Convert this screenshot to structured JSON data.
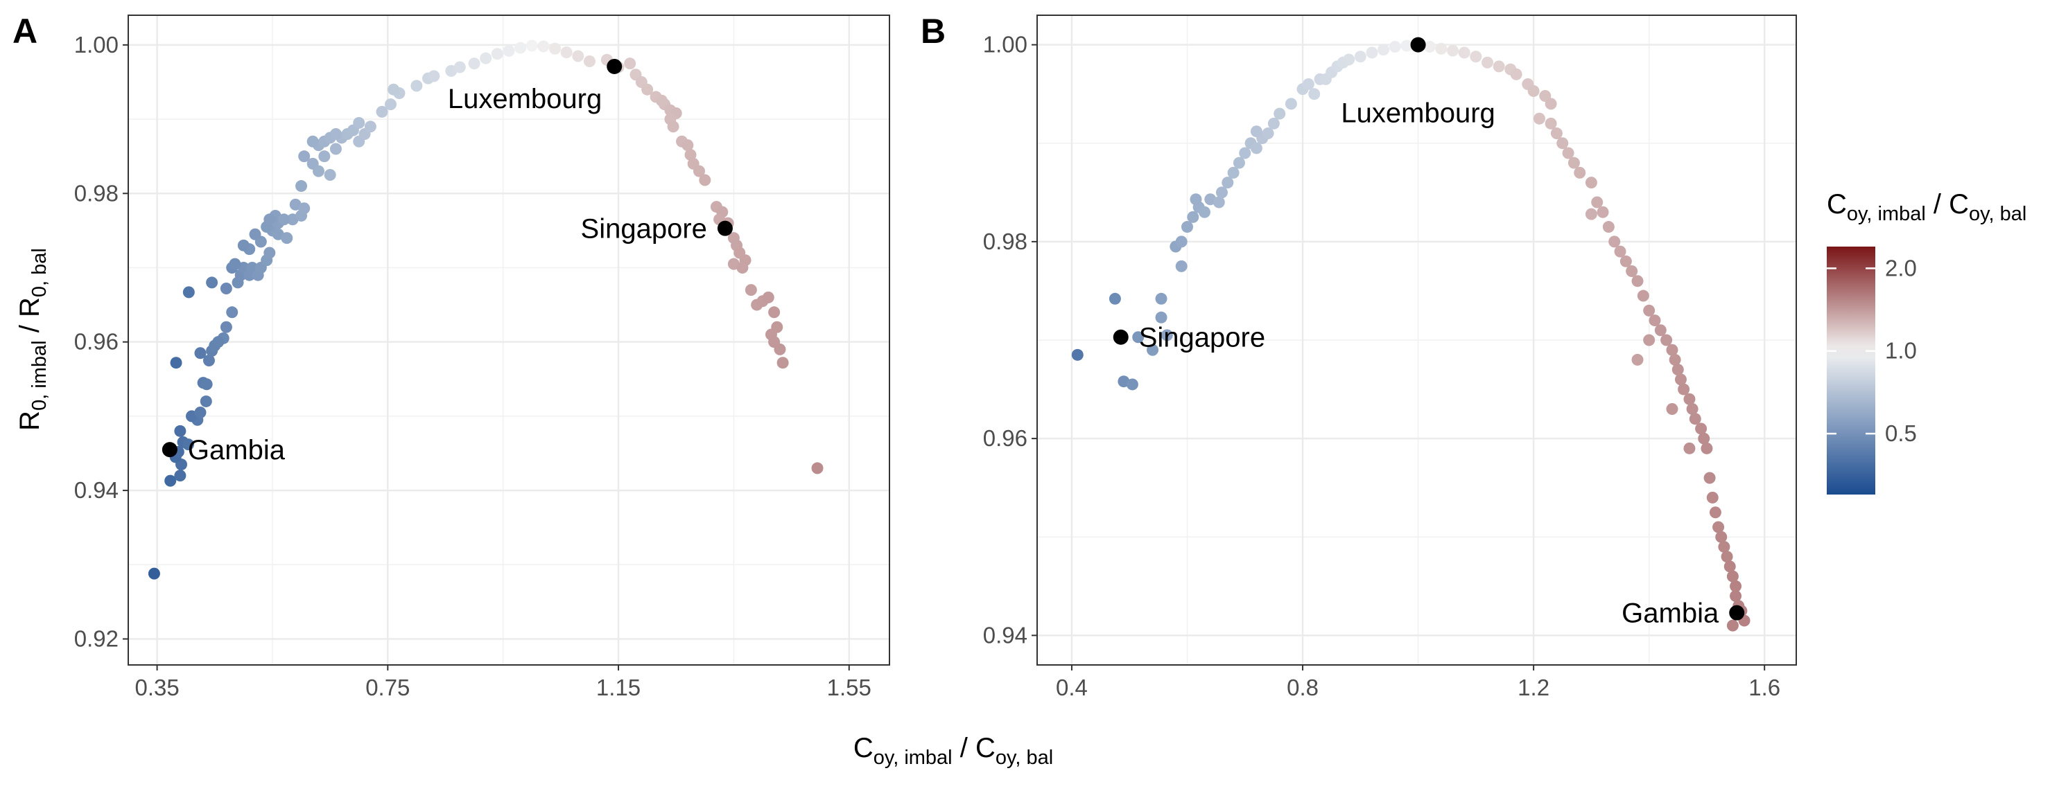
{
  "figure": {
    "xlabel": {
      "main": "C",
      "sub": "oy, imbal",
      "sep": " / ",
      "main2": "C",
      "sub2": "oy, bal"
    },
    "ylabel": {
      "main": "R",
      "sub": "0, imbal",
      "sep": " / ",
      "main2": "R",
      "sub2": "0, bal"
    }
  },
  "legend": {
    "title": {
      "main": "C",
      "sub": "oy, imbal",
      "sep": " / ",
      "main2": "C",
      "sub2": "oy, bal"
    },
    "ticks": [
      {
        "value": 2.0,
        "label": "2.0"
      },
      {
        "value": 1.0,
        "label": "1.0"
      },
      {
        "value": 0.5,
        "label": "0.5"
      }
    ],
    "colors": {
      "low": "#1a4b8f",
      "mid": "#f2f2f2",
      "high": "#7a1517"
    },
    "scale": "log",
    "range": [
      0.3,
      2.4
    ]
  },
  "chart_data": [
    {
      "type": "scatter",
      "panel": "A",
      "xlim": [
        0.3,
        1.62
      ],
      "ylim": [
        0.9165,
        1.004
      ],
      "xticks": [
        {
          "value": 0.35,
          "label": "0.35"
        },
        {
          "value": 0.75,
          "label": "0.75"
        },
        {
          "value": 1.15,
          "label": "1.15"
        },
        {
          "value": 1.55,
          "label": "1.55"
        }
      ],
      "yticks": [
        {
          "value": 0.92,
          "label": "0.92"
        },
        {
          "value": 0.94,
          "label": "0.94"
        },
        {
          "value": 0.96,
          "label": "0.96"
        },
        {
          "value": 0.98,
          "label": "0.98"
        },
        {
          "value": 1.0,
          "label": "1.00"
        }
      ],
      "grid": true,
      "points": [
        [
          0.345,
          0.9288
        ],
        [
          0.373,
          0.9413
        ],
        [
          0.39,
          0.942
        ],
        [
          0.392,
          0.9435
        ],
        [
          0.382,
          0.9445
        ],
        [
          0.387,
          0.9452
        ],
        [
          0.395,
          0.9465
        ],
        [
          0.404,
          0.9462
        ],
        [
          0.39,
          0.948
        ],
        [
          0.42,
          0.9495
        ],
        [
          0.41,
          0.95
        ],
        [
          0.425,
          0.9505
        ],
        [
          0.435,
          0.952
        ],
        [
          0.43,
          0.9545
        ],
        [
          0.436,
          0.9543
        ],
        [
          0.383,
          0.9572
        ],
        [
          0.44,
          0.9575
        ],
        [
          0.425,
          0.9585
        ],
        [
          0.445,
          0.9588
        ],
        [
          0.45,
          0.9595
        ],
        [
          0.465,
          0.9605
        ],
        [
          0.456,
          0.96
        ],
        [
          0.47,
          0.962
        ],
        [
          0.48,
          0.964
        ],
        [
          0.47,
          0.9672
        ],
        [
          0.405,
          0.9667
        ],
        [
          0.445,
          0.968
        ],
        [
          0.49,
          0.968
        ],
        [
          0.495,
          0.969
        ],
        [
          0.5,
          0.97
        ],
        [
          0.48,
          0.97
        ],
        [
          0.51,
          0.969
        ],
        [
          0.515,
          0.97
        ],
        [
          0.525,
          0.969
        ],
        [
          0.53,
          0.97
        ],
        [
          0.485,
          0.9705
        ],
        [
          0.54,
          0.971
        ],
        [
          0.545,
          0.972
        ],
        [
          0.51,
          0.9725
        ],
        [
          0.5,
          0.973
        ],
        [
          0.53,
          0.9735
        ],
        [
          0.52,
          0.9745
        ],
        [
          0.55,
          0.975
        ],
        [
          0.56,
          0.9745
        ],
        [
          0.575,
          0.974
        ],
        [
          0.54,
          0.9755
        ],
        [
          0.56,
          0.976
        ],
        [
          0.555,
          0.977
        ],
        [
          0.545,
          0.9765
        ],
        [
          0.585,
          0.9765
        ],
        [
          0.6,
          0.977
        ],
        [
          0.59,
          0.9785
        ],
        [
          0.605,
          0.978
        ],
        [
          0.57,
          0.9765
        ],
        [
          0.6,
          0.981
        ],
        [
          0.63,
          0.983
        ],
        [
          0.65,
          0.9825
        ],
        [
          0.605,
          0.985
        ],
        [
          0.62,
          0.984
        ],
        [
          0.64,
          0.985
        ],
        [
          0.66,
          0.986
        ],
        [
          0.63,
          0.9865
        ],
        [
          0.64,
          0.987
        ],
        [
          0.62,
          0.987
        ],
        [
          0.65,
          0.9875
        ],
        [
          0.67,
          0.9875
        ],
        [
          0.66,
          0.988
        ],
        [
          0.68,
          0.988
        ],
        [
          0.7,
          0.987
        ],
        [
          0.69,
          0.9885
        ],
        [
          0.71,
          0.988
        ],
        [
          0.7,
          0.9895
        ],
        [
          0.72,
          0.989
        ],
        [
          0.74,
          0.991
        ],
        [
          0.755,
          0.992
        ],
        [
          0.77,
          0.9935
        ],
        [
          0.76,
          0.994
        ],
        [
          0.8,
          0.9945
        ],
        [
          0.82,
          0.9955
        ],
        [
          0.83,
          0.9958
        ],
        [
          0.86,
          0.9965
        ],
        [
          0.875,
          0.997
        ],
        [
          0.9,
          0.9975
        ],
        [
          0.92,
          0.9982
        ],
        [
          0.94,
          0.9988
        ],
        [
          0.96,
          0.9992
        ],
        [
          0.98,
          0.9996
        ],
        [
          1.0,
          0.9999
        ],
        [
          1.02,
          0.9998
        ],
        [
          1.04,
          0.9995
        ],
        [
          1.06,
          0.999
        ],
        [
          1.08,
          0.9985
        ],
        [
          1.1,
          0.9978
        ],
        [
          1.13,
          0.998
        ],
        [
          1.15,
          0.997
        ],
        [
          1.17,
          0.9975
        ],
        [
          1.18,
          0.996
        ],
        [
          1.19,
          0.995
        ],
        [
          1.2,
          0.994
        ],
        [
          1.215,
          0.993
        ],
        [
          1.23,
          0.992
        ],
        [
          1.24,
          0.9912
        ],
        [
          1.25,
          0.9908
        ],
        [
          1.225,
          0.9925
        ],
        [
          1.24,
          0.99
        ],
        [
          1.245,
          0.989
        ],
        [
          1.26,
          0.987
        ],
        [
          1.27,
          0.9865
        ],
        [
          1.275,
          0.9852
        ],
        [
          1.28,
          0.984
        ],
        [
          1.29,
          0.983
        ],
        [
          1.3,
          0.9818
        ],
        [
          1.32,
          0.9782
        ],
        [
          1.33,
          0.9775
        ],
        [
          1.325,
          0.9765
        ],
        [
          1.34,
          0.976
        ],
        [
          1.35,
          0.974
        ],
        [
          1.355,
          0.973
        ],
        [
          1.36,
          0.972
        ],
        [
          1.35,
          0.9705
        ],
        [
          1.365,
          0.97
        ],
        [
          1.37,
          0.971
        ],
        [
          1.38,
          0.967
        ],
        [
          1.39,
          0.965
        ],
        [
          1.4,
          0.9655
        ],
        [
          1.41,
          0.966
        ],
        [
          1.42,
          0.964
        ],
        [
          1.425,
          0.962
        ],
        [
          1.415,
          0.961
        ],
        [
          1.42,
          0.96
        ],
        [
          1.43,
          0.959
        ],
        [
          1.435,
          0.9572
        ],
        [
          1.495,
          0.943
        ]
      ],
      "highlights": [
        {
          "name": "Luxembourg",
          "x": 1.143,
          "y": 0.9971,
          "label": "Luxembourg"
        },
        {
          "name": "Singapore",
          "x": 1.335,
          "y": 0.9753,
          "label": "Singapore"
        },
        {
          "name": "Gambia",
          "x": 0.372,
          "y": 0.9455,
          "label": "Gambia"
        }
      ]
    },
    {
      "type": "scatter",
      "panel": "B",
      "xlim": [
        0.34,
        1.655
      ],
      "ylim": [
        0.937,
        1.003
      ],
      "xticks": [
        {
          "value": 0.4,
          "label": "0.4"
        },
        {
          "value": 0.8,
          "label": "0.8"
        },
        {
          "value": 1.2,
          "label": "1.2"
        },
        {
          "value": 1.6,
          "label": "1.6"
        }
      ],
      "yticks": [
        {
          "value": 0.94,
          "label": "0.94"
        },
        {
          "value": 0.96,
          "label": "0.96"
        },
        {
          "value": 0.98,
          "label": "0.98"
        },
        {
          "value": 1.0,
          "label": "1.00"
        }
      ],
      "grid": true,
      "points": [
        [
          0.41,
          0.9685
        ],
        [
          0.475,
          0.9742
        ],
        [
          0.49,
          0.9658
        ],
        [
          0.505,
          0.9655
        ],
        [
          0.515,
          0.9703
        ],
        [
          0.54,
          0.969
        ],
        [
          0.555,
          0.9723
        ],
        [
          0.555,
          0.9742
        ],
        [
          0.565,
          0.9705
        ],
        [
          0.58,
          0.9795
        ],
        [
          0.59,
          0.98
        ],
        [
          0.59,
          0.9775
        ],
        [
          0.6,
          0.9815
        ],
        [
          0.61,
          0.9825
        ],
        [
          0.62,
          0.9835
        ],
        [
          0.63,
          0.983
        ],
        [
          0.615,
          0.9843
        ],
        [
          0.64,
          0.9843
        ],
        [
          0.655,
          0.984
        ],
        [
          0.66,
          0.985
        ],
        [
          0.67,
          0.986
        ],
        [
          0.68,
          0.987
        ],
        [
          0.69,
          0.988
        ],
        [
          0.7,
          0.989
        ],
        [
          0.71,
          0.99
        ],
        [
          0.72,
          0.9895
        ],
        [
          0.73,
          0.9905
        ],
        [
          0.72,
          0.9912
        ],
        [
          0.74,
          0.991
        ],
        [
          0.75,
          0.992
        ],
        [
          0.76,
          0.993
        ],
        [
          0.78,
          0.994
        ],
        [
          0.8,
          0.9955
        ],
        [
          0.81,
          0.996
        ],
        [
          0.83,
          0.9965
        ],
        [
          0.84,
          0.9965
        ],
        [
          0.82,
          0.995
        ],
        [
          0.85,
          0.9972
        ],
        [
          0.86,
          0.9978
        ],
        [
          0.87,
          0.9982
        ],
        [
          0.88,
          0.9985
        ],
        [
          0.9,
          0.9988
        ],
        [
          0.92,
          0.9992
        ],
        [
          0.94,
          0.9995
        ],
        [
          0.96,
          0.9998
        ],
        [
          0.98,
          0.9999
        ],
        [
          1.02,
          0.9998
        ],
        [
          1.04,
          0.9996
        ],
        [
          1.06,
          0.9994
        ],
        [
          1.08,
          0.9992
        ],
        [
          1.1,
          0.9988
        ],
        [
          1.12,
          0.9982
        ],
        [
          1.14,
          0.9978
        ],
        [
          1.16,
          0.9975
        ],
        [
          1.17,
          0.997
        ],
        [
          1.19,
          0.996
        ],
        [
          1.2,
          0.9953
        ],
        [
          1.22,
          0.9948
        ],
        [
          1.23,
          0.994
        ],
        [
          1.21,
          0.9925
        ],
        [
          1.23,
          0.992
        ],
        [
          1.24,
          0.991
        ],
        [
          1.25,
          0.99
        ],
        [
          1.26,
          0.989
        ],
        [
          1.27,
          0.988
        ],
        [
          1.28,
          0.987
        ],
        [
          1.3,
          0.986
        ],
        [
          1.31,
          0.984
        ],
        [
          1.32,
          0.983
        ],
        [
          1.3,
          0.9828
        ],
        [
          1.33,
          0.9815
        ],
        [
          1.34,
          0.98
        ],
        [
          1.35,
          0.979
        ],
        [
          1.36,
          0.978
        ],
        [
          1.37,
          0.977
        ],
        [
          1.38,
          0.976
        ],
        [
          1.39,
          0.9745
        ],
        [
          1.4,
          0.973
        ],
        [
          1.41,
          0.972
        ],
        [
          1.42,
          0.971
        ],
        [
          1.43,
          0.97
        ],
        [
          1.44,
          0.969
        ],
        [
          1.445,
          0.968
        ],
        [
          1.45,
          0.967
        ],
        [
          1.455,
          0.966
        ],
        [
          1.46,
          0.965
        ],
        [
          1.47,
          0.964
        ],
        [
          1.475,
          0.963
        ],
        [
          1.48,
          0.962
        ],
        [
          1.49,
          0.961
        ],
        [
          1.495,
          0.96
        ],
        [
          1.5,
          0.959
        ],
        [
          1.505,
          0.956
        ],
        [
          1.51,
          0.954
        ],
        [
          1.515,
          0.9525
        ],
        [
          1.52,
          0.951
        ],
        [
          1.525,
          0.95
        ],
        [
          1.53,
          0.949
        ],
        [
          1.535,
          0.948
        ],
        [
          1.54,
          0.947
        ],
        [
          1.545,
          0.946
        ],
        [
          1.55,
          0.945
        ],
        [
          1.55,
          0.944
        ],
        [
          1.555,
          0.943
        ],
        [
          1.56,
          0.9425
        ],
        [
          1.565,
          0.9415
        ],
        [
          1.545,
          0.941
        ],
        [
          1.44,
          0.963
        ],
        [
          1.47,
          0.959
        ],
        [
          1.4,
          0.97
        ],
        [
          1.38,
          0.968
        ]
      ],
      "highlights": [
        {
          "name": "Luxembourg",
          "x": 1.0,
          "y": 1.0,
          "label": "Luxembourg"
        },
        {
          "name": "Singapore",
          "x": 0.485,
          "y": 0.9703,
          "label": "Singapore"
        },
        {
          "name": "Gambia",
          "x": 1.552,
          "y": 0.9423,
          "label": "Gambia"
        }
      ]
    }
  ]
}
